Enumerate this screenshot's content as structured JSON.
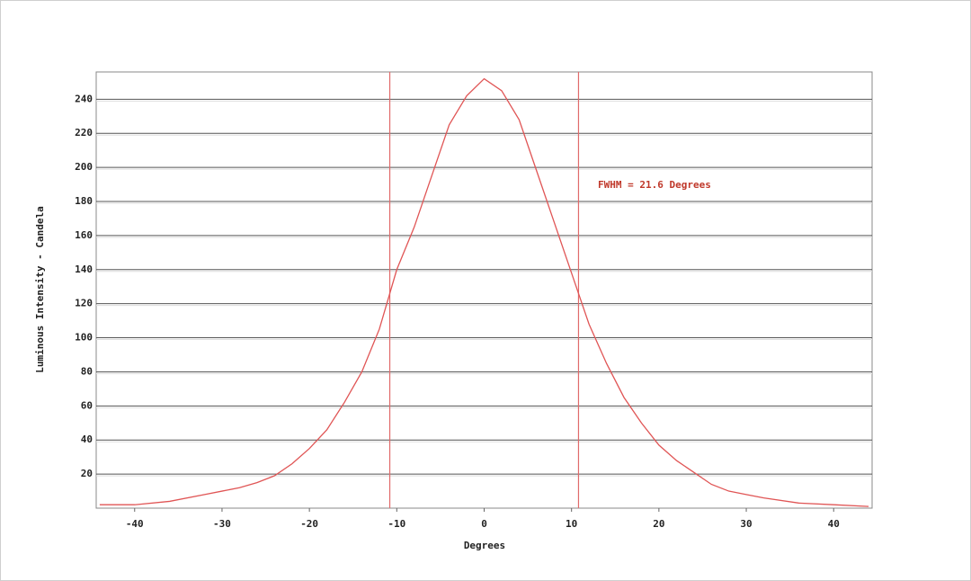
{
  "chart_data": {
    "type": "line",
    "x_label": "Degrees",
    "y_label": "Luminous Intensity - Candela",
    "annotation": "FWHM = 21.6 Degrees",
    "x": [
      -44,
      -40,
      -36,
      -32,
      -30,
      -28,
      -26,
      -24,
      -22,
      -20,
      -18,
      -16,
      -14,
      -12,
      -10.8,
      -10,
      -8,
      -6,
      -4,
      -2,
      0,
      2,
      4,
      6,
      8,
      10,
      10.8,
      12,
      14,
      16,
      18,
      20,
      22,
      24,
      26,
      28,
      30,
      32,
      36,
      40,
      44
    ],
    "values": [
      2,
      2,
      4,
      8,
      10,
      12,
      15,
      19,
      26,
      35,
      46,
      62,
      80,
      105,
      126,
      140,
      165,
      195,
      225,
      242,
      252,
      245,
      228,
      198,
      168,
      138,
      126,
      108,
      85,
      65,
      50,
      37,
      28,
      21,
      14,
      10,
      8,
      6,
      3,
      2,
      1
    ],
    "color": "#e05555",
    "vlines": [
      -10.8,
      10.8
    ],
    "vline_color": "#e06a6a",
    "xlim": [
      -44.4,
      44.4
    ],
    "ylim": [
      0,
      256
    ],
    "xticks": [
      -40,
      -30,
      -20,
      -10,
      0,
      10,
      20,
      30,
      40
    ],
    "yticks": [
      20,
      40,
      60,
      80,
      100,
      120,
      140,
      160,
      180,
      200,
      220,
      240
    ],
    "grid": true
  }
}
